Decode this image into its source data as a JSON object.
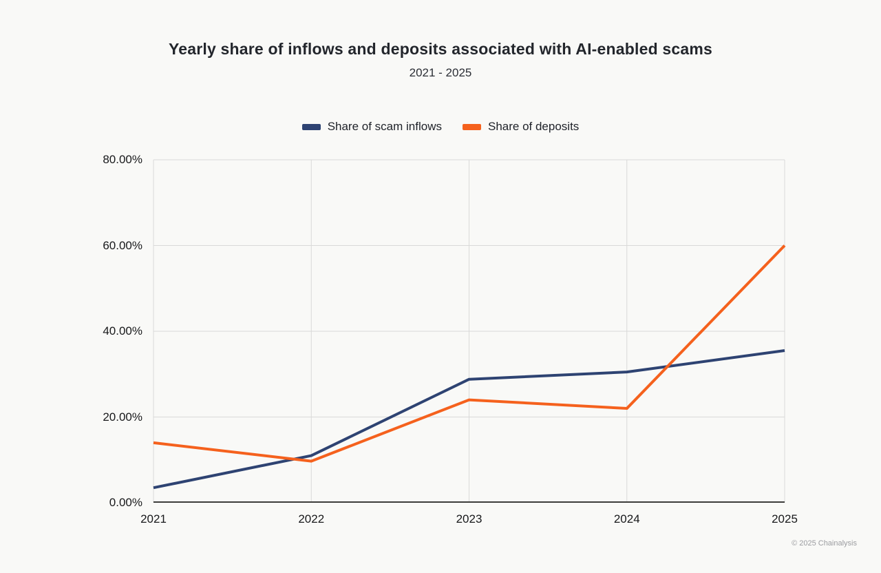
{
  "header": {
    "title": "Yearly share of inflows and deposits associated with AI-enabled scams",
    "subtitle": "2021 - 2025"
  },
  "chart_data": {
    "type": "line",
    "x": [
      2021,
      2022,
      2023,
      2024,
      2025
    ],
    "x_tick_labels": [
      "2021",
      "2022",
      "2023",
      "2024",
      "2025"
    ],
    "series": [
      {
        "name": "Share of scam inflows",
        "color": "#2e4372",
        "values": [
          3.5,
          11,
          28.8,
          30.5,
          35.5
        ]
      },
      {
        "name": "Share of deposits",
        "color": "#f5611d",
        "values": [
          14,
          9.7,
          24,
          22,
          60
        ]
      }
    ],
    "ylim": [
      0,
      80
    ],
    "ytick_step": 20,
    "ytick_labels": [
      "0.00%",
      "20.00%",
      "40.00%",
      "60.00%",
      "80.00%"
    ],
    "grid": true,
    "legend_position": "top-center",
    "colors": {
      "gridline": "#d9d9d8",
      "plot_border": "#d9d9d8",
      "axis_line": "#3c3c3a",
      "background": "#f9f9f7"
    }
  },
  "footer": {
    "credit": "© 2025 Chainalysis"
  }
}
